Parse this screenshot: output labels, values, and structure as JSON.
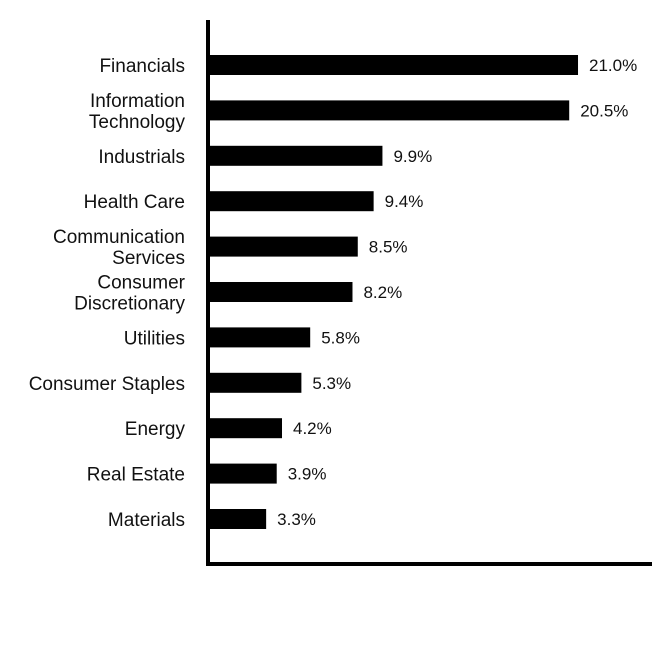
{
  "chart_data": {
    "type": "bar",
    "orientation": "horizontal",
    "categories": [
      [
        "Financials"
      ],
      [
        "Information",
        "Technology"
      ],
      [
        "Industrials"
      ],
      [
        "Health Care"
      ],
      [
        "Communication",
        "Services"
      ],
      [
        "Consumer",
        "Discretionary"
      ],
      [
        "Utilities"
      ],
      [
        "Consumer Staples"
      ],
      [
        "Energy"
      ],
      [
        "Real Estate"
      ],
      [
        "Materials"
      ]
    ],
    "values": [
      21.0,
      20.5,
      9.9,
      9.4,
      8.5,
      8.2,
      5.8,
      5.3,
      4.2,
      3.9,
      3.3
    ],
    "value_labels": [
      "21.0%",
      "20.5%",
      "9.9%",
      "9.4%",
      "8.5%",
      "8.2%",
      "5.8%",
      "5.3%",
      "4.2%",
      "3.9%",
      "3.3%"
    ],
    "xlim": [
      0,
      25
    ],
    "grid": false,
    "bar_color": "#000000",
    "axis_color": "#000000"
  }
}
